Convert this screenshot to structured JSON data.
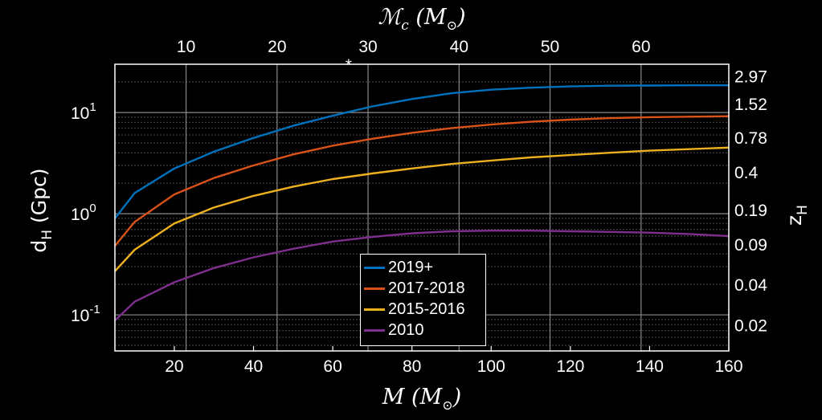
{
  "chart_data": {
    "type": "line",
    "xlabel": "M",
    "xlabel_unit": "(M",
    "xlabel_unit_sub": "⊙",
    "xlabel_close": ")",
    "top_xlabel": "ℳ",
    "top_xlabel_sub": "c",
    "top_xlabel_unit": "(M",
    "top_xlabel_unit_sub": "⊙",
    "top_xlabel_close": ")",
    "ylabel": "d",
    "ylabel_sub": "H",
    "ylabel_unit": "(Gpc)",
    "right_ylabel": "z",
    "right_ylabel_sub": "H",
    "xlim": [
      5,
      160
    ],
    "ylim": [
      0.044,
      30
    ],
    "yscale": "log",
    "grid": true,
    "legend_placement": "bottom-center",
    "x_ticks": [
      20,
      40,
      60,
      80,
      100,
      120,
      140,
      160
    ],
    "y_ticks": [
      {
        "value": 0.1,
        "base": "10",
        "exp": "-1"
      },
      {
        "value": 1,
        "base": "10",
        "exp": "0"
      },
      {
        "value": 10,
        "base": "10",
        "exp": "1"
      }
    ],
    "top_x_ticks": [
      {
        "label": "10",
        "x": 22.97
      },
      {
        "label": "20",
        "x": 45.95
      },
      {
        "label": "30",
        "x": 68.92
      },
      {
        "label": "40",
        "x": 91.9
      },
      {
        "label": "50",
        "x": 114.87
      },
      {
        "label": "60",
        "x": 137.85
      }
    ],
    "right_y_ticks": [
      {
        "label": "2.97",
        "y": 23
      },
      {
        "label": "1.52",
        "y": 12.2
      },
      {
        "label": "0.78",
        "y": 5.7
      },
      {
        "label": "0.4",
        "y": 2.6
      },
      {
        "label": "0.19",
        "y": 1.1
      },
      {
        "label": "0.09",
        "y": 0.5
      },
      {
        "label": "0.04",
        "y": 0.2
      },
      {
        "label": "0.02",
        "y": 0.08
      }
    ],
    "marker": {
      "symbol": "*",
      "x": 64,
      "color": "#e8112d"
    },
    "x": [
      5,
      10,
      20,
      30,
      40,
      50,
      60,
      70,
      80,
      90,
      100,
      110,
      120,
      130,
      140,
      150,
      160
    ],
    "series": [
      {
        "name": "2019+",
        "color": "#0072bd",
        "values": [
          0.9,
          1.6,
          2.8,
          4.1,
          5.6,
          7.4,
          9.3,
          11.5,
          13.6,
          15.5,
          16.8,
          17.6,
          18.1,
          18.4,
          18.5,
          18.6,
          18.6
        ]
      },
      {
        "name": "2017-2018",
        "color": "#d95319",
        "values": [
          0.48,
          0.83,
          1.55,
          2.25,
          3.0,
          3.85,
          4.7,
          5.5,
          6.3,
          7.0,
          7.6,
          8.1,
          8.5,
          8.8,
          9.0,
          9.1,
          9.2
        ]
      },
      {
        "name": "2015-2016",
        "color": "#edb120",
        "values": [
          0.27,
          0.44,
          0.8,
          1.15,
          1.5,
          1.85,
          2.2,
          2.5,
          2.8,
          3.1,
          3.35,
          3.6,
          3.8,
          4.0,
          4.2,
          4.35,
          4.5
        ]
      },
      {
        "name": "2010",
        "color": "#7e2f8e",
        "values": [
          0.088,
          0.135,
          0.21,
          0.29,
          0.37,
          0.45,
          0.53,
          0.59,
          0.64,
          0.67,
          0.68,
          0.68,
          0.67,
          0.66,
          0.65,
          0.63,
          0.6
        ]
      }
    ]
  }
}
